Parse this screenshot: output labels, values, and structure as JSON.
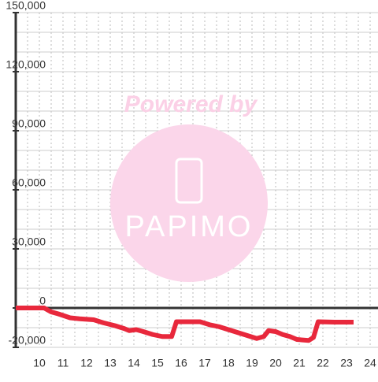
{
  "chart_data": {
    "type": "line",
    "watermark": {
      "line1": "Powered by",
      "line2": "PAPIMO"
    },
    "xlim": [
      9,
      24.333
    ],
    "ylim": [
      -20000,
      150000
    ],
    "xticks": [
      10,
      11,
      12,
      13,
      14,
      15,
      16,
      17,
      18,
      19,
      20,
      21,
      22,
      23,
      24
    ],
    "x_minor_ticks": [
      9.5,
      10.5,
      11.5,
      12.5,
      13.5,
      14.5,
      15.5,
      16.5,
      17.5,
      18.5,
      19.5,
      20.5,
      21.5,
      22.5,
      23.5
    ],
    "yticks": [
      {
        "value": -20000,
        "label": "-20,000"
      },
      0,
      {
        "value": 30000,
        "label": "30,000"
      },
      {
        "value": 60000,
        "label": "60,000"
      },
      {
        "value": 90000,
        "label": "90,000"
      },
      {
        "value": 120000,
        "label": "120,000"
      },
      {
        "value": 150000,
        "label": "150,000"
      }
    ],
    "y_minor_ticks": [
      -10000,
      10000,
      20000,
      40000,
      50000,
      70000,
      80000,
      100000,
      110000,
      130000,
      140000
    ],
    "grid": true,
    "series": [
      {
        "color": "#e8283c",
        "x": [
          9,
          10.2,
          10.5,
          10.8,
          11.3,
          11.7,
          12.3,
          12.7,
          13.2,
          13.6,
          13.8,
          14.1,
          14.4,
          14.8,
          15.2,
          15.6,
          15.8,
          16.8,
          17.2,
          17.6,
          18,
          18.4,
          18.8,
          19.2,
          19.5,
          19.7,
          20,
          20.3,
          20.6,
          20.9,
          21.4,
          21.6,
          21.8,
          22.5,
          23.3
        ],
        "values": [
          0,
          0,
          -2000,
          -3000,
          -5000,
          -5500,
          -6000,
          -7500,
          -9000,
          -10500,
          -11500,
          -11000,
          -12000,
          -13500,
          -14500,
          -14500,
          -7000,
          -7000,
          -8500,
          -9500,
          -11000,
          -12500,
          -14000,
          -15500,
          -14500,
          -11500,
          -12000,
          -13500,
          -14500,
          -16000,
          -16500,
          -15000,
          -7000,
          -7200,
          -7200
        ]
      }
    ]
  }
}
